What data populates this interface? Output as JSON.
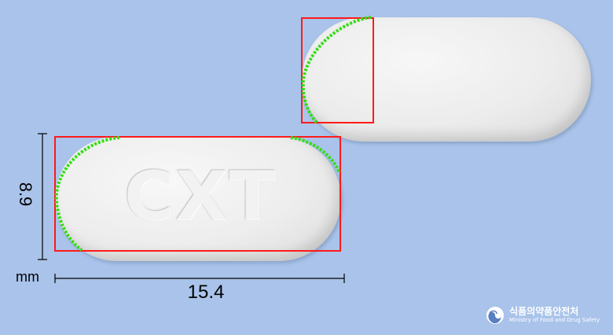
{
  "pill": {
    "imprint": "CXT",
    "color": "#eeeeee"
  },
  "dimensions": {
    "height": "8.9",
    "unit": "mm",
    "length": "15.4"
  },
  "logo": {
    "korean": "식품의약품안전처",
    "english": "Ministry of Food and Drug Safety",
    "icon": "mfds-emblem-icon"
  },
  "colors": {
    "background": "#a9c3ea",
    "annotation_box": "#ff1a1a",
    "edge_trace": "#33dd11"
  }
}
